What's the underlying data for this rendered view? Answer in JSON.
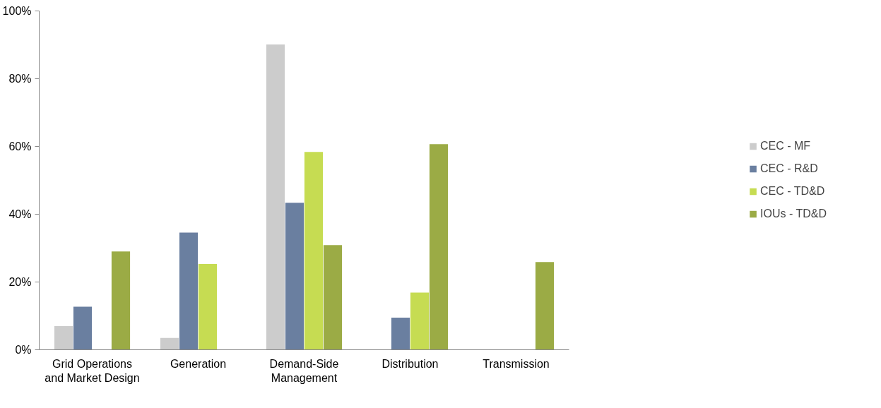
{
  "chart_data": {
    "type": "bar",
    "categories": [
      "Grid Operations and Market Design",
      "Generation",
      "Demand-Side Management",
      "Distribution",
      "Transmission"
    ],
    "series": [
      {
        "name": "CEC - MF",
        "color": "#cccccc",
        "values": [
          7.0,
          3.5,
          90.1,
          null,
          null
        ]
      },
      {
        "name": "CEC - R&D",
        "color": "#6a7fa0",
        "values": [
          12.7,
          34.6,
          43.4,
          9.5,
          null
        ]
      },
      {
        "name": "CEC - TD&D",
        "color": "#c6dc52",
        "values": [
          null,
          25.3,
          58.4,
          16.9,
          null
        ]
      },
      {
        "name": "IOUs - TD&D",
        "color": "#9bab45",
        "values": [
          29.0,
          null,
          30.9,
          60.7,
          25.9
        ]
      }
    ],
    "ylim": [
      0,
      100
    ],
    "yticks": [
      {
        "value": 0,
        "label": "0%"
      },
      {
        "value": 20,
        "label": "20%"
      },
      {
        "value": 40,
        "label": "40%"
      },
      {
        "value": 60,
        "label": "60%"
      },
      {
        "value": 80,
        "label": "80%"
      },
      {
        "value": 100,
        "label": "100%"
      }
    ],
    "grid": false,
    "legend": "right"
  }
}
